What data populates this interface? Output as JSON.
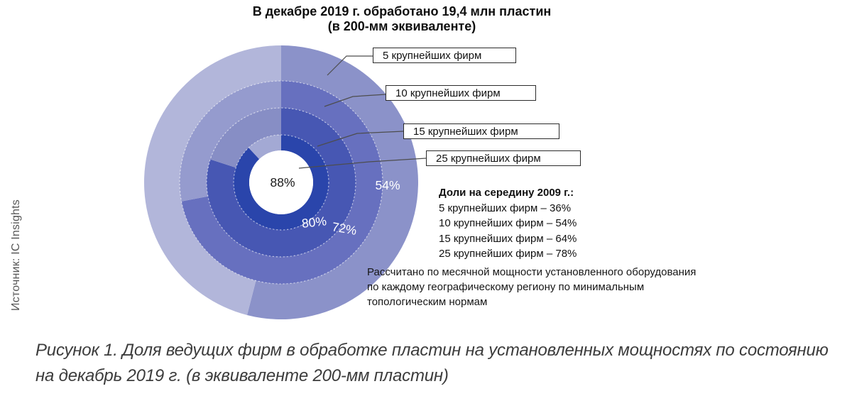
{
  "title": {
    "line1": "В декабре 2019 г. обработано 19,4 млн пластин",
    "line2": "(в 200-мм эквиваленте)"
  },
  "source_label": "Источник: IC Insights",
  "chart_data": {
    "type": "pie",
    "variant": "concentric-donut",
    "title": "В декабре 2019 г. обработано 19,4 млн пластин (в 200-мм эквиваленте)",
    "unit": "%",
    "fill_start": "12 o'clock, clockwise",
    "ring_order": "outermost to innermost",
    "rings": [
      {
        "label": "5 крупнейших фирм",
        "share_dec_2019": 54,
        "share_mid_2009": 36,
        "filled_color": "#8b92c9",
        "rest_color": "#b2b6da"
      },
      {
        "label": "10 крупнейших фирм",
        "share_dec_2019": 72,
        "share_mid_2009": 54,
        "filled_color": "#6770bf",
        "rest_color": "#959bce"
      },
      {
        "label": "15 крупнейших фирм",
        "share_dec_2019": 80,
        "share_mid_2009": 64,
        "filled_color": "#4757b3",
        "rest_color": "#878ec5"
      },
      {
        "label": "25 крупнейших фирм",
        "share_dec_2019": 88,
        "share_mid_2009": 78,
        "filled_color": "#2a45ab",
        "rest_color": "#a3a9d4"
      }
    ]
  },
  "legend_2009": {
    "heading": "Доли на середину 2009 г.:",
    "items": [
      "5 крупнейших фирм – 36%",
      "10 крупнейших фирм – 54%",
      "15 крупнейших фирм – 64%",
      "25 крупнейших фирм – 78%"
    ]
  },
  "note": {
    "line1": "Рассчитано по месячной мощности установленного оборудования",
    "line2": "по каждому географическому региону по минимальным",
    "line3": "топологическим нормам"
  },
  "caption": {
    "line1": "Рисунок 1. Доля ведущих фирм в обработке пластин на установленных мощностях по состоянию",
    "line2": "на декабрь 2019 г. (в эквиваленте 200-мм пластин)"
  }
}
